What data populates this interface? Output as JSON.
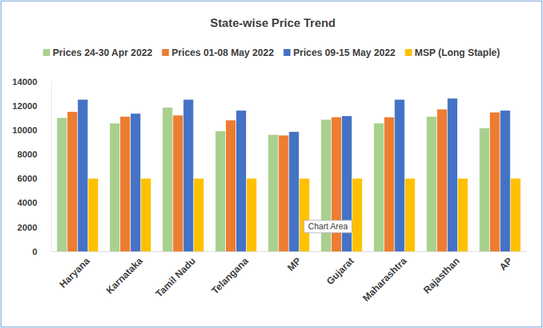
{
  "chart_data": {
    "type": "bar",
    "title": "State-wise Price Trend",
    "categories": [
      "Haryana",
      "Karnataka",
      "Tamil Nadu",
      "Telangana",
      "MP",
      "Gujarat",
      "Maharashtra",
      "Rajasthan",
      "AP"
    ],
    "series": [
      {
        "name": "Prices 24-30 Apr 2022",
        "color": "#a9d18e",
        "values": [
          11000,
          10550,
          11850,
          9900,
          9600,
          10850,
          10550,
          11100,
          10150
        ]
      },
      {
        "name": "Prices 01-08 May 2022",
        "color": "#ed7d31",
        "values": [
          11500,
          11100,
          11200,
          10800,
          9550,
          11050,
          11050,
          11700,
          11450
        ]
      },
      {
        "name": "Prices 09-15 May 2022",
        "color": "#4472c4",
        "values": [
          12500,
          11350,
          12500,
          11600,
          9850,
          11150,
          12500,
          12600,
          11600
        ]
      },
      {
        "name": "MSP (Long Staple)",
        "color": "#ffc000",
        "values": [
          6000,
          6000,
          6000,
          6000,
          6000,
          6000,
          6000,
          6000,
          6000
        ]
      }
    ],
    "ylim": [
      0,
      14000
    ],
    "yticks": [
      0,
      2000,
      4000,
      6000,
      8000,
      10000,
      12000,
      14000
    ],
    "grid": false,
    "legend": "top",
    "annotations": [
      "Chart Area"
    ]
  }
}
